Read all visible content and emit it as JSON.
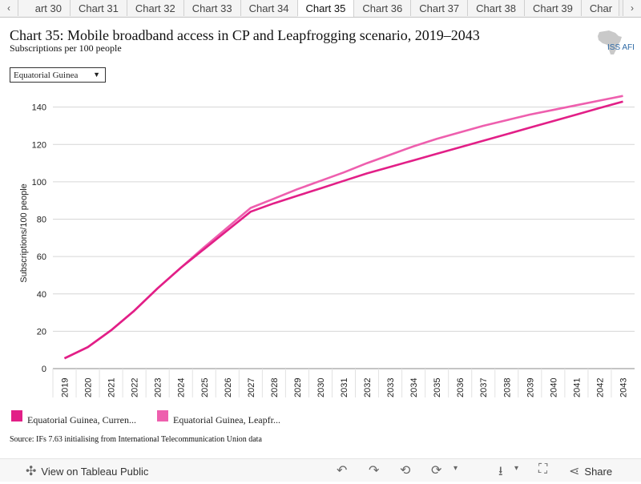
{
  "tabs": {
    "left_arrow": "‹",
    "right_arrow": "›",
    "items": [
      "art 30",
      "Chart 31",
      "Chart 32",
      "Chart 33",
      "Chart 34",
      "Chart 35",
      "Chart 36",
      "Chart 37",
      "Chart 38",
      "Chart 39",
      "Char"
    ],
    "active_index": 5
  },
  "title": "Chart 35: Mobile broadband access in CP and Leapfrogging scenario, 2019–2043",
  "subtitle": "Subscriptions per 100 people",
  "logo_text": "ISS AFI",
  "dropdown": {
    "selected": "Equatorial Guinea"
  },
  "chart_data": {
    "type": "line",
    "xlabel": "",
    "ylabel": "Subscriptions/100 people",
    "ylim": [
      0,
      145
    ],
    "yticks": [
      0,
      20,
      40,
      60,
      80,
      100,
      120,
      140
    ],
    "x": [
      2019,
      2020,
      2021,
      2022,
      2023,
      2024,
      2025,
      2026,
      2027,
      2028,
      2029,
      2030,
      2031,
      2032,
      2033,
      2034,
      2035,
      2036,
      2037,
      2038,
      2039,
      2040,
      2041,
      2042,
      2043
    ],
    "grid": true,
    "legend_position": "bottom",
    "series": [
      {
        "name": "Equatorial Guinea, Curren...",
        "color": "#e21f87",
        "values": [
          5.5,
          11.5,
          20.5,
          31,
          43,
          54,
          64,
          74,
          84,
          88.5,
          92.5,
          96.5,
          100.5,
          104.5,
          108,
          111.5,
          115,
          118.5,
          122,
          125.5,
          129,
          132.5,
          136,
          139.5,
          143
        ]
      },
      {
        "name": "Equatorial Guinea, Leapfr...",
        "color": "#ee5fae",
        "values": [
          5.5,
          11.5,
          20.5,
          31,
          43,
          54,
          65,
          75.5,
          86,
          91,
          96,
          100.5,
          105,
          110,
          114.5,
          119,
          123,
          126.5,
          130,
          133,
          136,
          138.5,
          141,
          143.5,
          146
        ]
      }
    ]
  },
  "source": "Source: IFs 7.63 initialising from International Telecommunication Union data",
  "footer": {
    "view_label": "View on Tableau Public",
    "share_label": "Share"
  }
}
